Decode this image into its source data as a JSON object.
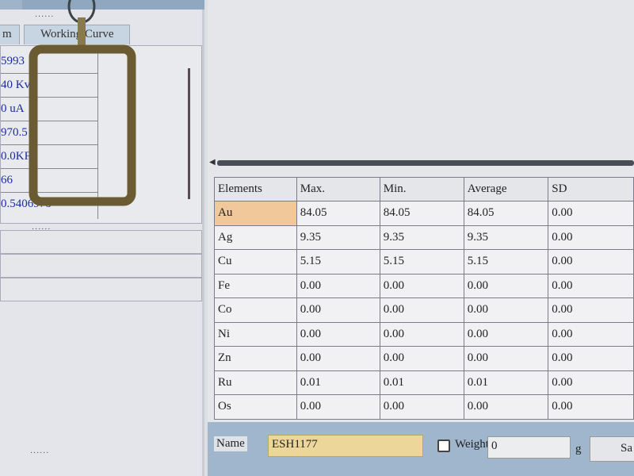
{
  "left_panel": {
    "tabs": [
      {
        "label": "m"
      },
      {
        "label": "Working Curve"
      }
    ],
    "values": [
      "5993",
      "40 Kv",
      "0 uA",
      "970.5",
      "0.0KF",
      "66",
      "0.5406978"
    ],
    "dots": "......"
  },
  "table": {
    "headers": [
      "Elements",
      "Max.",
      "Min.",
      "Average",
      "SD"
    ],
    "rows": [
      [
        "Au",
        "84.05",
        "84.05",
        "84.05",
        "0.00"
      ],
      [
        "Ag",
        "9.35",
        "9.35",
        "9.35",
        "0.00"
      ],
      [
        "Cu",
        "5.15",
        "5.15",
        "5.15",
        "0.00"
      ],
      [
        "Fe",
        "0.00",
        "0.00",
        "0.00",
        "0.00"
      ],
      [
        "Co",
        "0.00",
        "0.00",
        "0.00",
        "0.00"
      ],
      [
        "Ni",
        "0.00",
        "0.00",
        "0.00",
        "0.00"
      ],
      [
        "Zn",
        "0.00",
        "0.00",
        "0.00",
        "0.00"
      ],
      [
        "Ru",
        "0.01",
        "0.01",
        "0.01",
        "0.00"
      ],
      [
        "Os",
        "0.00",
        "0.00",
        "0.00",
        "0.00"
      ]
    ],
    "selected_color": "#f0c89a"
  },
  "bottom_bar": {
    "name_label": "Name",
    "name_value": "ESH1177",
    "weight_label": "Weight",
    "weight_checked": false,
    "weight_value": "0",
    "unit": "g",
    "save_label": "Sa"
  }
}
